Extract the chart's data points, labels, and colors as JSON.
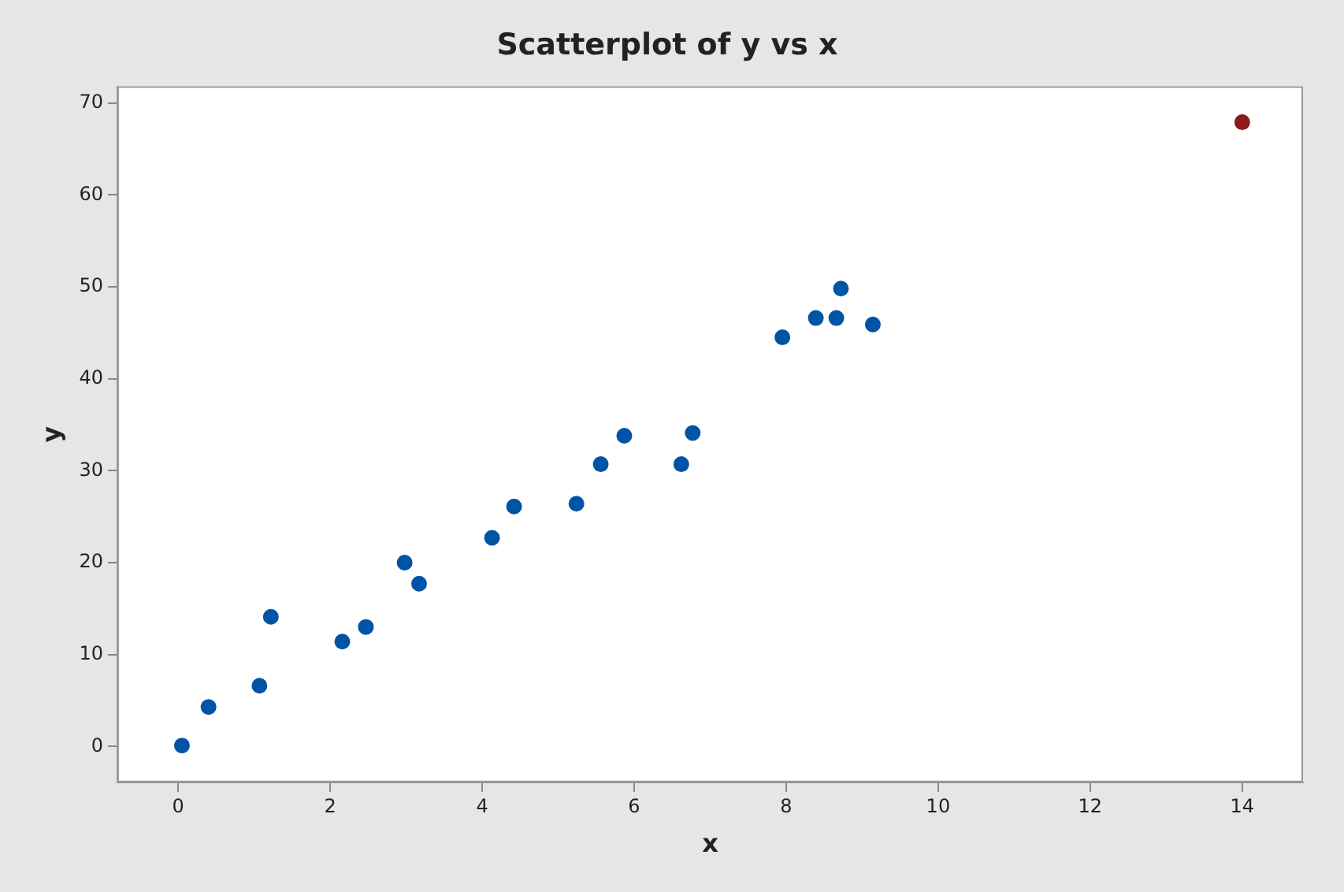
{
  "chart_data": {
    "type": "scatter",
    "title": "Scatterplot of y vs x",
    "xlabel": "x",
    "ylabel": "y",
    "series": [
      {
        "color": "#0054a6",
        "x": [
          0.05,
          0.4,
          1.07,
          1.22,
          2.16,
          2.47,
          2.98,
          3.17,
          4.13,
          4.42,
          5.24,
          5.56,
          5.87,
          6.62,
          6.77,
          7.95,
          8.39,
          8.66,
          8.72,
          9.14
        ],
        "values": [
          0.1,
          4.3,
          6.6,
          14.1,
          11.4,
          13.0,
          20.0,
          17.7,
          22.7,
          26.1,
          26.4,
          30.7,
          33.8,
          30.7,
          34.1,
          44.5,
          46.6,
          46.6,
          49.8,
          45.9
        ]
      },
      {
        "color": "#8b1a1a",
        "x": [
          14.0
        ],
        "values": [
          67.9
        ]
      }
    ],
    "xlim": [
      -0.8,
      14.8
    ],
    "xticks": [
      0,
      2,
      4,
      6,
      8,
      10,
      12,
      14
    ],
    "ylim": [
      -3.9,
      71.8
    ],
    "yticks": [
      0,
      10,
      20,
      30,
      40,
      50,
      60,
      70
    ],
    "grid": false,
    "legend": false,
    "marker": "circle"
  }
}
